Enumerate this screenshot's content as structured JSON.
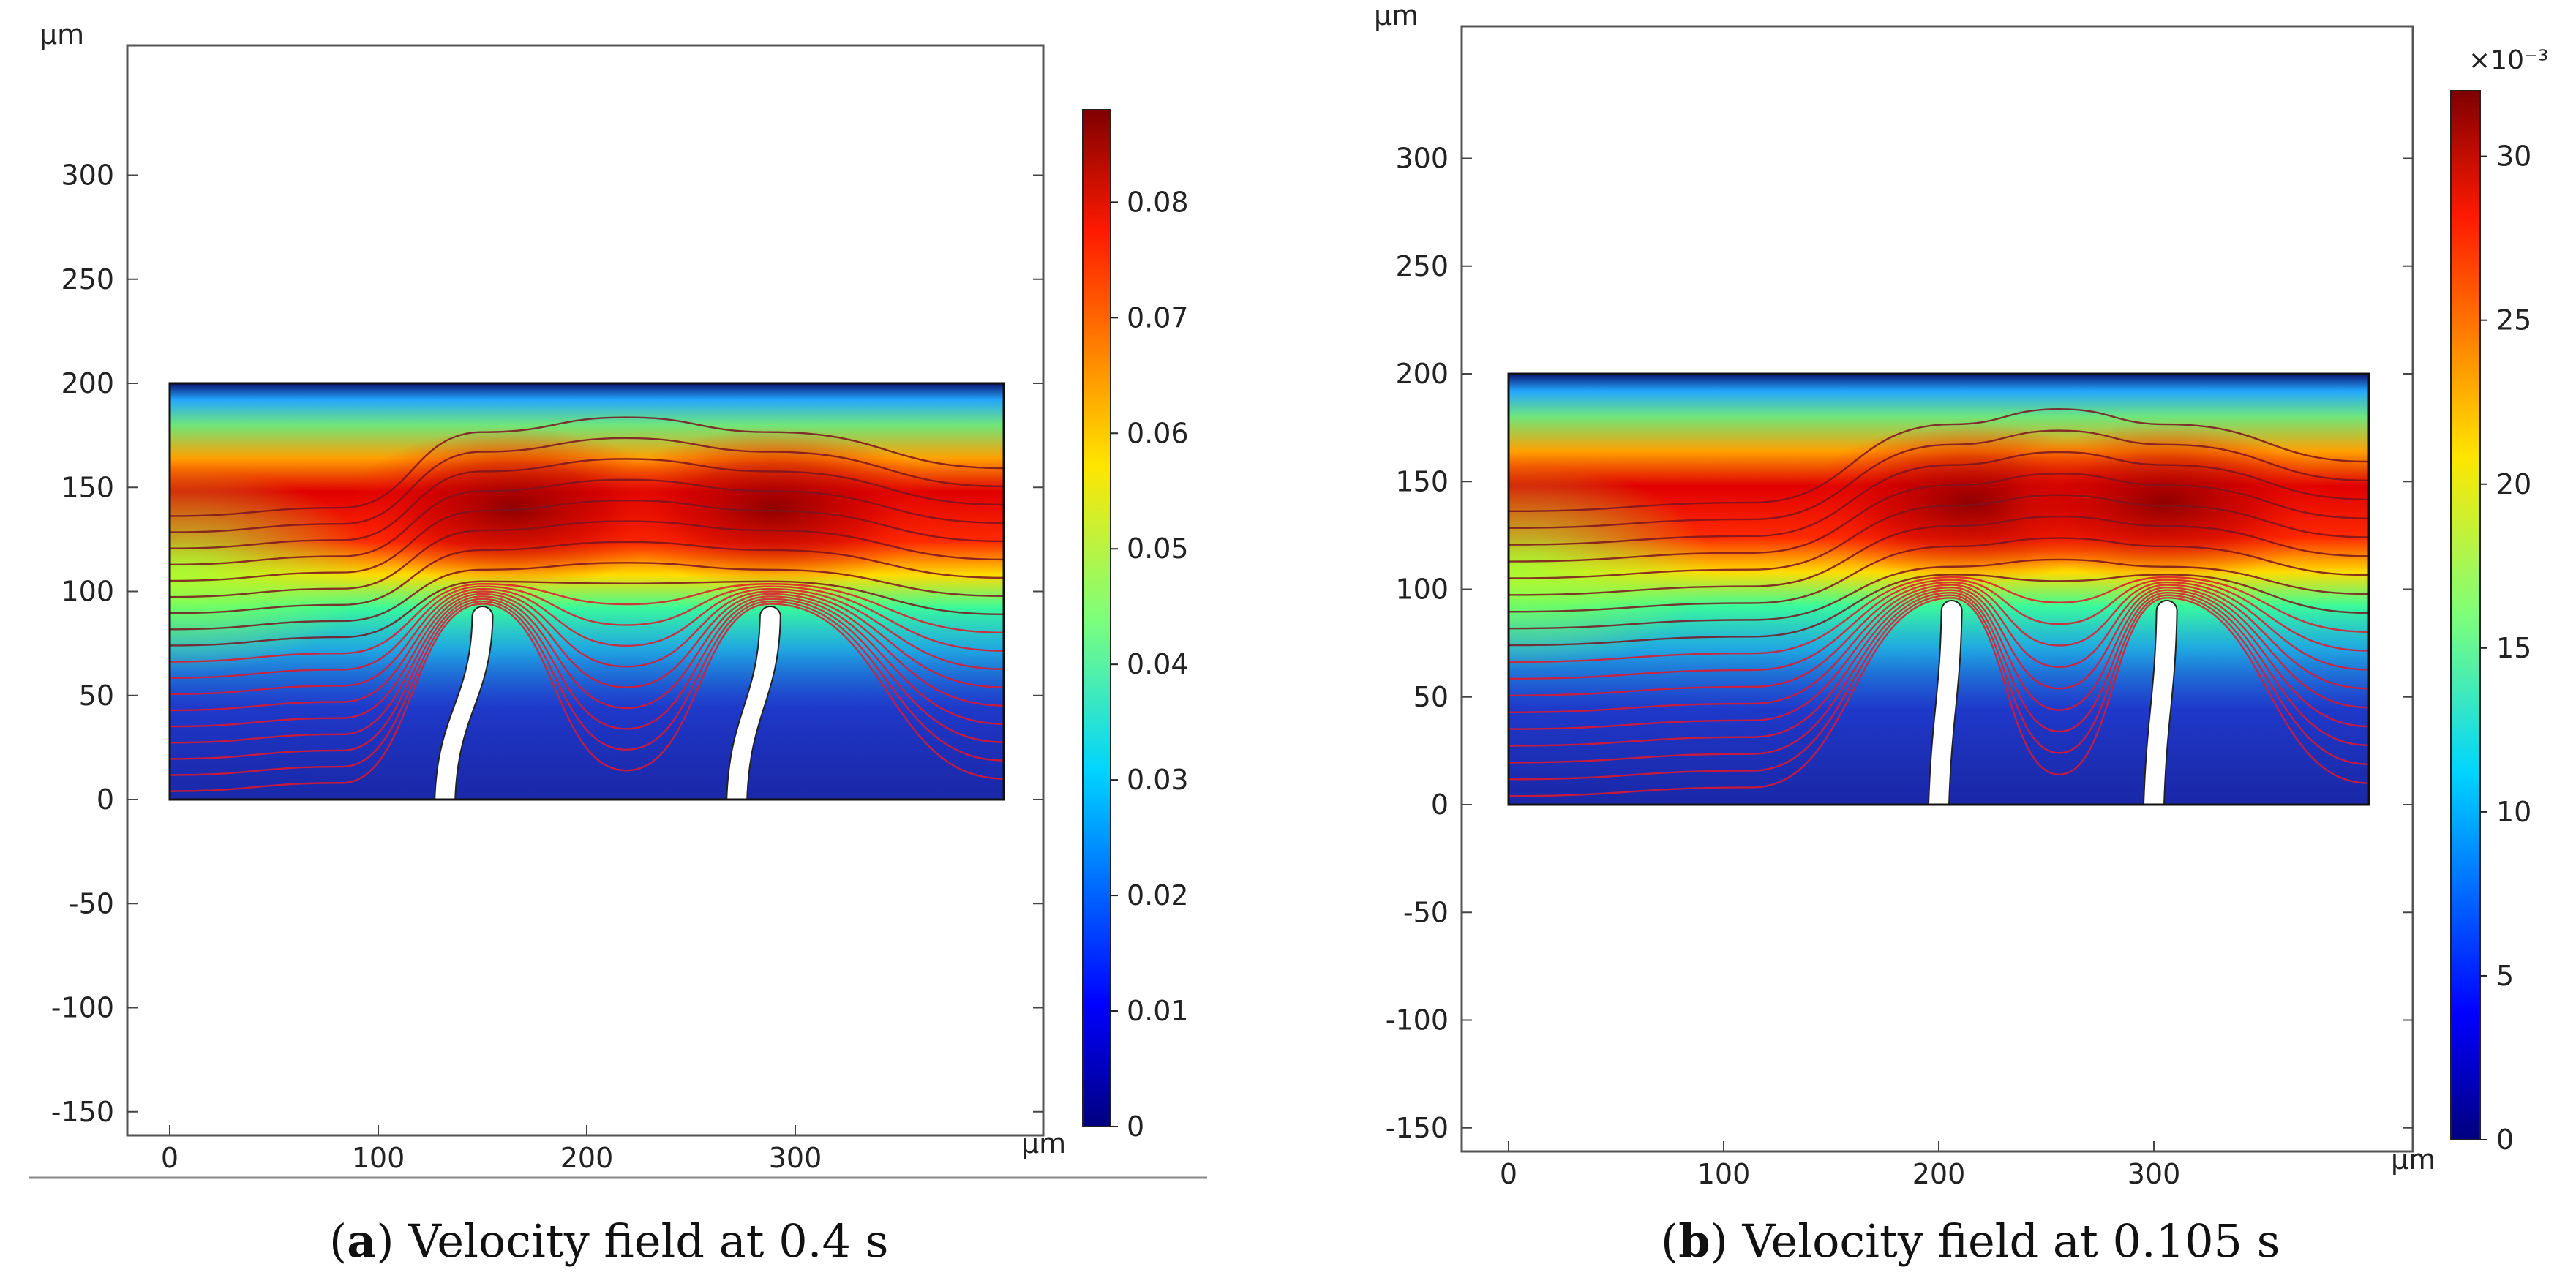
{
  "figure": {
    "panels": [
      {
        "id": "a",
        "caption_letter": "a",
        "caption_text": " Velocity field at 0.4 s",
        "axis_unit_x": "μm",
        "axis_unit_y": "μm",
        "x_ticks": [
          "0",
          "100",
          "200",
          "300"
        ],
        "y_ticks": [
          "-150",
          "-100",
          "-50",
          "0",
          "50",
          "100",
          "150",
          "200",
          "250",
          "300"
        ],
        "colorbar_ticks": [
          "0",
          "0.01",
          "0.02",
          "0.03",
          "0.04",
          "0.05",
          "0.06",
          "0.07",
          "0.08"
        ],
        "colorbar_multiplier": ""
      },
      {
        "id": "b",
        "caption_letter": "b",
        "caption_text": " Velocity field at 0.105 s",
        "axis_unit_x": "μm",
        "axis_unit_y": "μm",
        "x_ticks": [
          "0",
          "100",
          "200",
          "300"
        ],
        "y_ticks": [
          "-150",
          "-100",
          "-50",
          "0",
          "50",
          "100",
          "150",
          "200",
          "250",
          "300"
        ],
        "colorbar_ticks": [
          "0",
          "5",
          "10",
          "15",
          "20",
          "25",
          "30"
        ],
        "colorbar_multiplier": "×10⁻³"
      }
    ]
  },
  "chart_data": [
    {
      "type": "heatmap",
      "title": "Velocity field at 0.4 s",
      "xlabel": "μm",
      "ylabel": "μm",
      "xlim": [
        -20,
        420
      ],
      "ylim": [
        -160,
        360
      ],
      "domain": {
        "x": [
          0,
          400
        ],
        "y": [
          0,
          200
        ]
      },
      "color_range": [
        0,
        0.088
      ],
      "colorbar_ticks": [
        0,
        0.01,
        0.02,
        0.03,
        0.04,
        0.05,
        0.06,
        0.07,
        0.08
      ],
      "cilia": [
        {
          "base_x": 132,
          "tip_x": 150,
          "tip_y": 90
        },
        {
          "base_x": 272,
          "tip_x": 288,
          "tip_y": 90
        }
      ],
      "peak_centers": [
        {
          "x": 165,
          "y": 140
        },
        {
          "x": 290,
          "y": 140
        }
      ],
      "streamlines": 18,
      "colormap": "jet"
    },
    {
      "type": "heatmap",
      "title": "Velocity field at 0.105 s",
      "xlabel": "μm",
      "ylabel": "μm",
      "xlim": [
        -20,
        420
      ],
      "ylim": [
        -160,
        360
      ],
      "domain": {
        "x": [
          0,
          400
        ],
        "y": [
          0,
          200
        ]
      },
      "color_range": [
        0,
        32
      ],
      "color_scale_multiplier": "1e-3",
      "colorbar_ticks": [
        0,
        5,
        10,
        15,
        20,
        25,
        30
      ],
      "cilia": [
        {
          "base_x": 200,
          "tip_x": 206,
          "tip_y": 92
        },
        {
          "base_x": 300,
          "tip_x": 306,
          "tip_y": 92
        }
      ],
      "peak_centers": [
        {
          "x": 215,
          "y": 140
        },
        {
          "x": 305,
          "y": 140
        }
      ],
      "streamlines": 18,
      "colormap": "jet"
    }
  ]
}
